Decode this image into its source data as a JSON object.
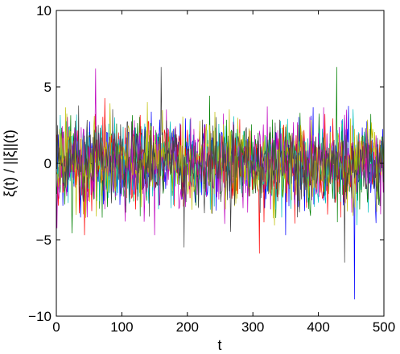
{
  "chart_data": {
    "type": "line",
    "title": "",
    "xlabel": "t",
    "ylabel": "ξ(t) / ||ξ||(t)",
    "xlim": [
      0,
      500
    ],
    "ylim": [
      -10,
      10
    ],
    "xticks": [
      0,
      100,
      200,
      300,
      400,
      500
    ],
    "yticks": [
      -10,
      -5,
      0,
      5,
      10
    ],
    "xtick_labels": [
      "0",
      "100",
      "200",
      "300",
      "400",
      "500"
    ],
    "ytick_labels": [
      "−10",
      "−5",
      "0",
      "5",
      "10"
    ],
    "grid": false,
    "legend": "none",
    "series_count": 7,
    "series_colors": [
      "#0000ff",
      "#008000",
      "#ff0000",
      "#00bfbf",
      "#bf00bf",
      "#bfbf00",
      "#404040"
    ],
    "series_description": "Many overlapping noise traces over t = 0..500, mostly between about -3 and 3, with occasional spikes.",
    "notable_extremes": [
      {
        "x": 60,
        "y": 6.2
      },
      {
        "x": 160,
        "y": 6.3
      },
      {
        "x": 428,
        "y": 6.3
      },
      {
        "x": 455,
        "y": -8.9
      },
      {
        "x": 440,
        "y": -6.5
      },
      {
        "x": 310,
        "y": -5.9
      },
      {
        "x": 195,
        "y": -5.5
      }
    ]
  }
}
